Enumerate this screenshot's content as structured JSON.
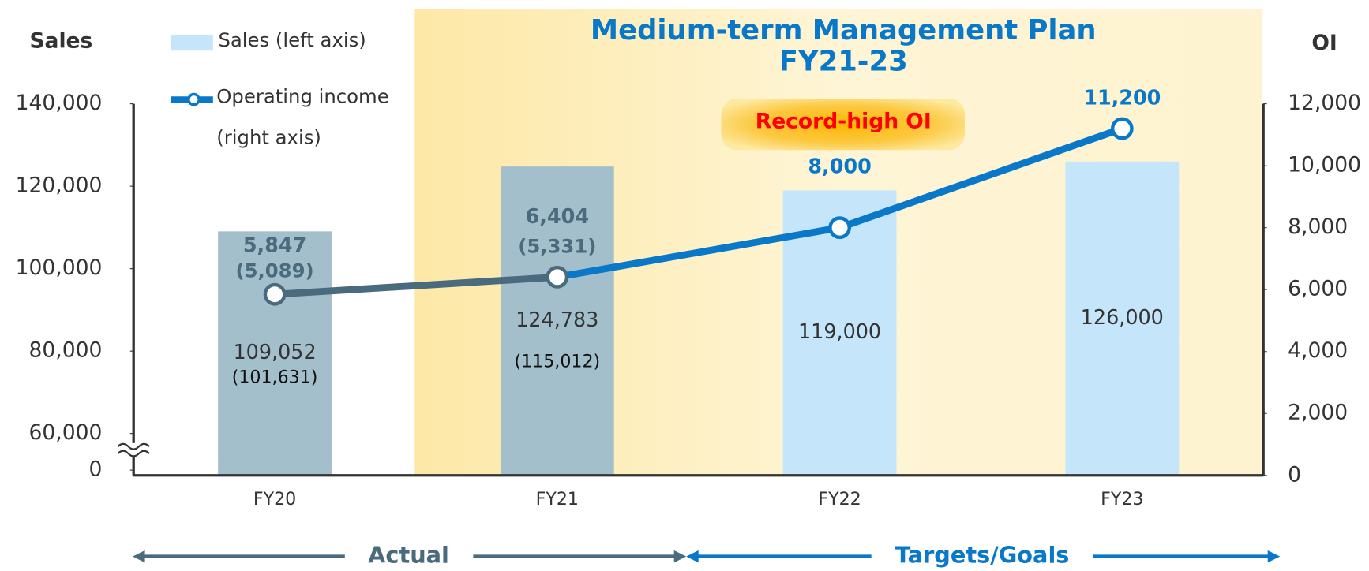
{
  "chart_data": {
    "type": "bar_line",
    "title": "Medium-term Management Plan",
    "subtitle": "FY21-23",
    "y_label": "Sales",
    "y2_label": "OI",
    "annotations": {
      "record": "Record-high OI",
      "actual": "Actual",
      "targets": "Targets/Goals"
    },
    "categories": [
      "FY20",
      "FY21",
      "FY22",
      "FY23"
    ],
    "ylim": [
      0,
      140000
    ],
    "yticks": [
      0,
      {
        "value": 60000,
        "label": "60,000"
      },
      {
        "value": 80000,
        "label": "80,000"
      },
      {
        "value": 100000,
        "label": "100,000"
      },
      {
        "value": 120000,
        "label": "120,000"
      },
      {
        "value": 140000,
        "label": "140,000"
      }
    ],
    "axis_break": true,
    "y2lim": [
      0,
      12000
    ],
    "y2ticks": [
      0,
      {
        "value": 2000,
        "label": "2,000"
      },
      {
        "value": 4000,
        "label": "4,000"
      },
      {
        "value": 6000,
        "label": "6,000"
      },
      {
        "value": 8000,
        "label": "8,000"
      },
      {
        "value": 10000,
        "label": "10,000"
      },
      {
        "value": 12000,
        "label": "12,000"
      }
    ],
    "series": [
      {
        "name": "Sales (left axis)",
        "type": "bar",
        "color": "#c5e6fa",
        "colors": [
          "#a3bfcb",
          "#a3bfcb",
          "#c5e6fa",
          "#c5e6fa"
        ],
        "values": [
          109052,
          124783,
          119000,
          126000
        ],
        "value_labels": [
          "109,052",
          "124,783",
          "119,000",
          "126,000"
        ],
        "sub_values": [
          101631,
          115012,
          null,
          null
        ],
        "sub_value_labels": [
          "(101,631)",
          "(115,012)",
          null,
          null
        ]
      },
      {
        "name": "Operating income (right axis)",
        "type": "line",
        "axis": "y2",
        "color": "#0a78c8",
        "colors": [
          "#4a6b7d",
          "#4a6b7d",
          "#0a78c8",
          "#0a78c8"
        ],
        "values": [
          5847,
          6404,
          8000,
          11200
        ],
        "value_labels": [
          "5,847",
          "6,404",
          "8,000",
          "11,200"
        ],
        "sub_values": [
          5089,
          5331,
          null,
          null
        ],
        "sub_value_labels": [
          "(5,089)",
          "(5,331)",
          null,
          null
        ]
      }
    ]
  }
}
